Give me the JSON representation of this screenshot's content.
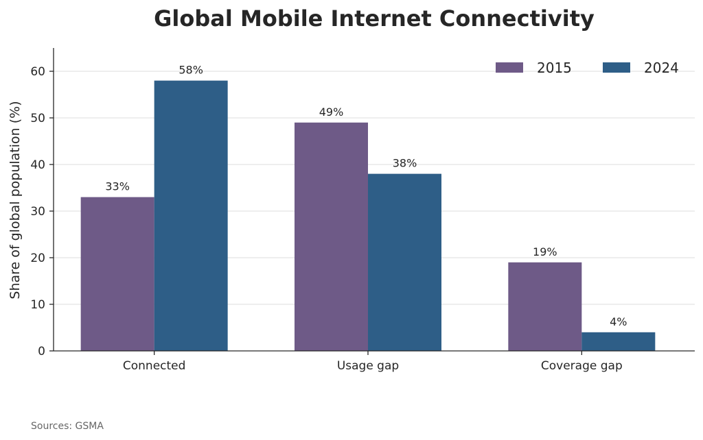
{
  "chart_data": {
    "type": "bar",
    "title": "Global Mobile Internet Connectivity",
    "xlabel": "",
    "ylabel": "Share of global population (%)",
    "categories": [
      "Connected",
      "Usage gap",
      "Coverage gap"
    ],
    "series": [
      {
        "name": "2015",
        "color": "#6e5a87",
        "values": [
          33,
          49,
          19
        ],
        "labels": [
          "33%",
          "49%",
          "19%"
        ]
      },
      {
        "name": "2024",
        "color": "#2e5e87",
        "values": [
          58,
          38,
          4
        ],
        "labels": [
          "58%",
          "38%",
          "4%"
        ]
      }
    ],
    "ylim": [
      0,
      65
    ],
    "yticks": [
      0,
      10,
      20,
      30,
      40,
      50,
      60
    ],
    "grid": "horizontal",
    "legend": "top-right",
    "source": "Sources: GSMA"
  }
}
